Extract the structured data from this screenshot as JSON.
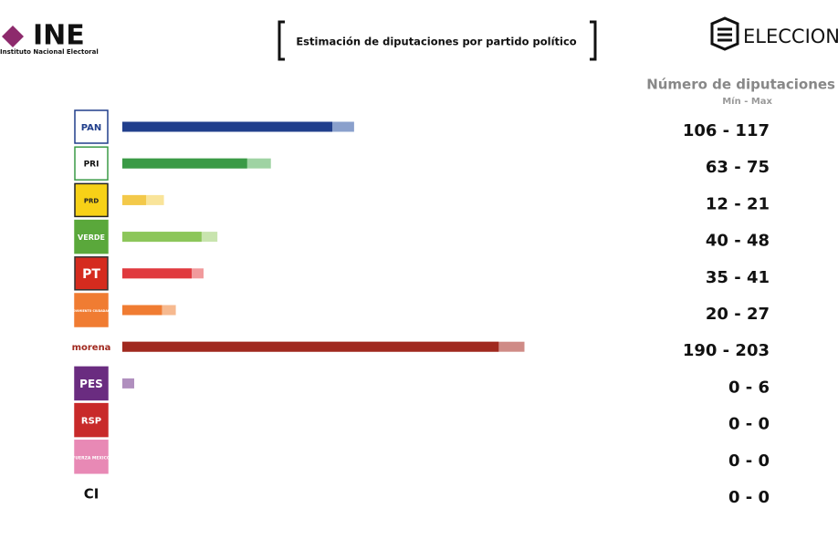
{
  "header": {
    "org": "INE",
    "org_name": "Instituto Nacional Electoral",
    "brand": "ELECCIONES"
  },
  "chart_data": {
    "type": "range-bar",
    "title": "Estimación de diputaciones por partido político",
    "value_heading": "Número de diputaciones",
    "value_subheading": "Mín - Max",
    "categories": [
      "PAN",
      "PRI",
      "PRD",
      "VERDE",
      "PT",
      "MOVIMIENTO CIUDADANO",
      "morena",
      "PES",
      "RSP",
      "FUERZA MEXICO",
      "CI"
    ],
    "series": [
      {
        "values": [
          106,
          63,
          12,
          40,
          35,
          20,
          190,
          0,
          0,
          0,
          0
        ],
        "colors": [
          "#213f8c",
          "#3a9a46",
          "#f3c94a",
          "#8cc65a",
          "#e03a3e",
          "#f07c32",
          "#a0291f",
          "#7a3a8e",
          "#c0392b",
          "#e889b5",
          "#444444"
        ]
      },
      {
        "values": [
          117,
          75,
          21,
          48,
          41,
          27,
          203,
          6,
          0,
          0,
          0
        ],
        "colors": [
          "#8aa0cc",
          "#9fd3a3",
          "#f9e49a",
          "#c8e4ae",
          "#f19a9c",
          "#f6b98f",
          "#cf8b86",
          "#b08fbe",
          "#e5a0a0",
          "#f3c4da",
          "#aaaaaa"
        ]
      }
    ],
    "value_labels": [
      "106 - 117",
      "63 - 75",
      "12 - 21",
      "40 - 48",
      "35 - 41",
      "20 - 27",
      "190 - 203",
      "0 - 6",
      "0 - 0",
      "0 - 0",
      "0 - 0"
    ]
  }
}
